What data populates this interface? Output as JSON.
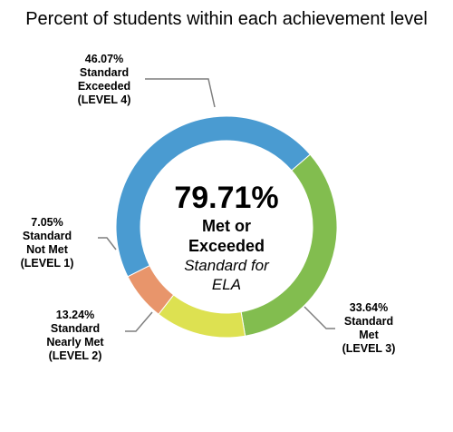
{
  "chart_data": {
    "type": "pie",
    "title": "Percent of students within each achievement level",
    "center": {
      "value": "79.71%",
      "line1": "Met or",
      "line2": "Exceeded",
      "line3": "Standard for",
      "line4": "ELA"
    },
    "slices": [
      {
        "pct": "46.07%",
        "l1": "Standard",
        "l2": "Exceeded",
        "l3": "(LEVEL 4)",
        "value": 46.07,
        "color": "#4a9bd1"
      },
      {
        "pct": "33.64%",
        "l1": "Standard",
        "l2": "Met",
        "l3": "(LEVEL 3)",
        "value": 33.64,
        "color": "#82bd4f"
      },
      {
        "pct": "13.24%",
        "l1": "Standard",
        "l2": "Nearly Met",
        "l3": "(LEVEL 2)",
        "value": 13.24,
        "color": "#dde151"
      },
      {
        "pct": "7.05%",
        "l1": "Standard",
        "l2": "Not Met",
        "l3": "(LEVEL 1)",
        "value": 7.05,
        "color": "#e8956b"
      }
    ]
  }
}
